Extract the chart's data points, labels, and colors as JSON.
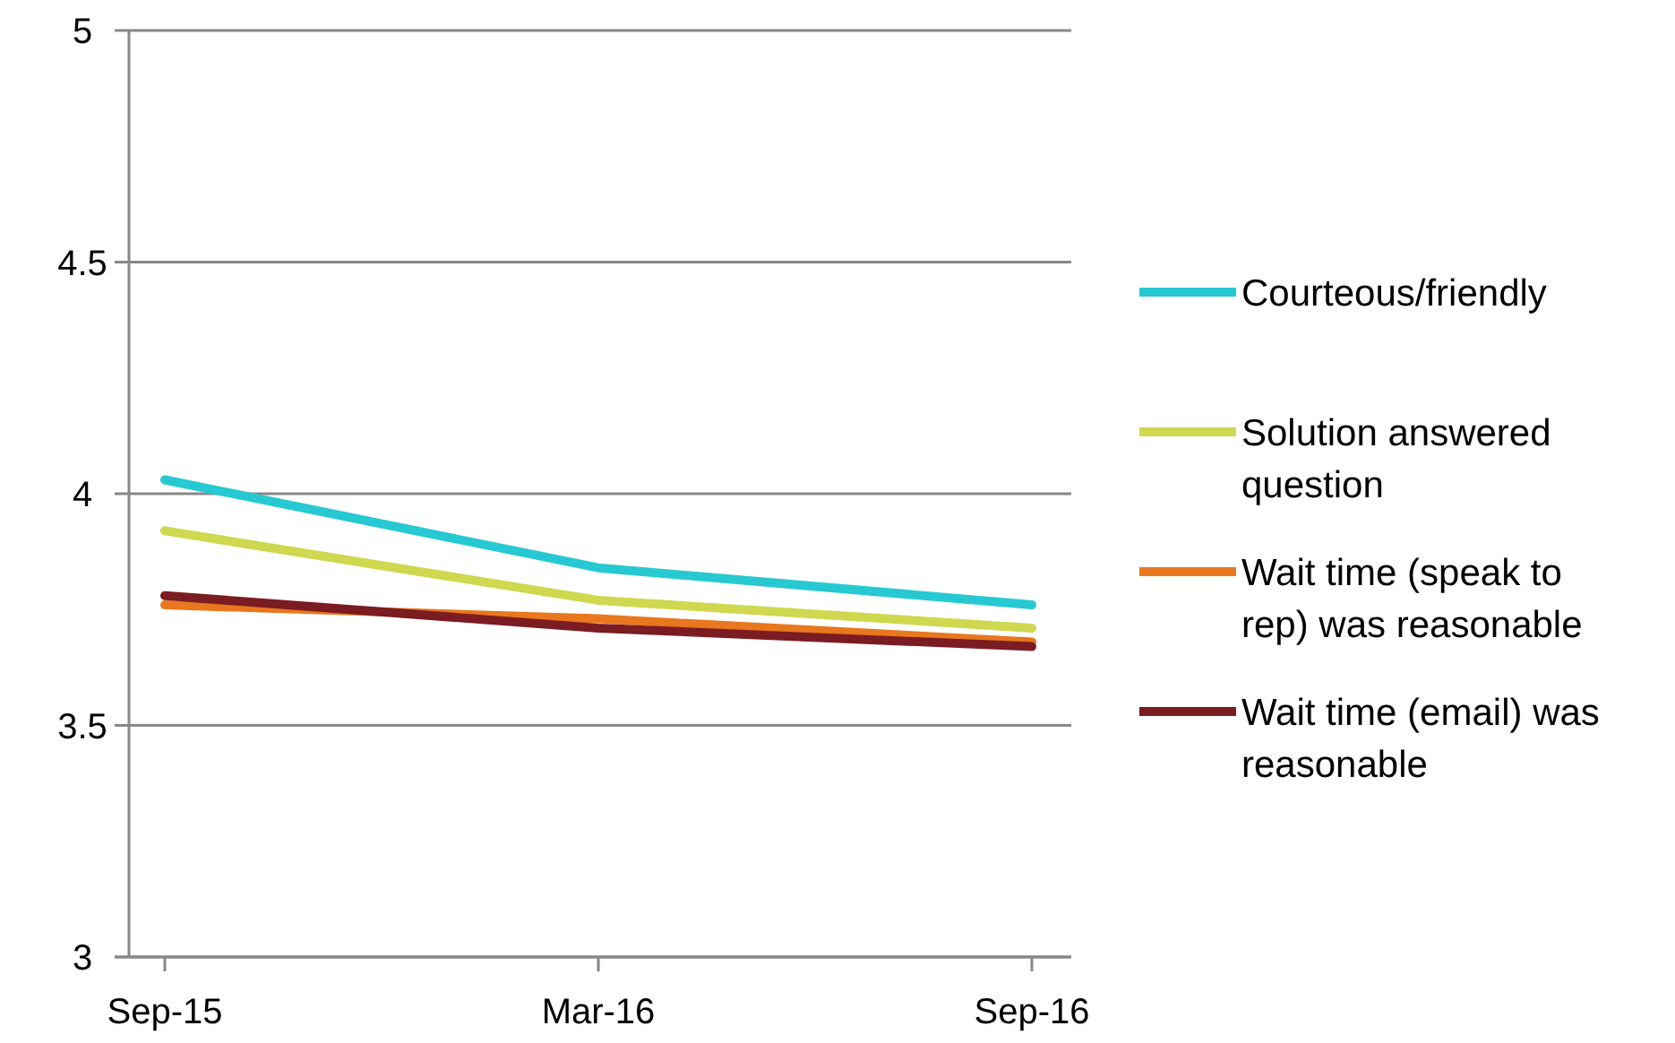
{
  "chart_data": {
    "type": "line",
    "categories": [
      "Sep-15",
      "Mar-16",
      "Sep-16"
    ],
    "series": [
      {
        "name": "Courteous/friendly",
        "color": "#26c9d1",
        "values": [
          4.03,
          3.84,
          3.76
        ]
      },
      {
        "name": "Solution answered question",
        "color": "#cfd84e",
        "values": [
          3.92,
          3.77,
          3.71
        ]
      },
      {
        "name": "Wait time (speak to rep) was reasonable",
        "color": "#e8771e",
        "values": [
          3.76,
          3.73,
          3.68
        ]
      },
      {
        "name": "Wait time (email) was reasonable",
        "color": "#7b1c22",
        "values": [
          3.78,
          3.71,
          3.67
        ]
      }
    ],
    "ylim": [
      3,
      5
    ],
    "yticks": [
      3,
      3.5,
      4,
      4.5,
      5
    ],
    "grid": "y",
    "legend": "right",
    "marker": "none",
    "line_style": "solid"
  }
}
